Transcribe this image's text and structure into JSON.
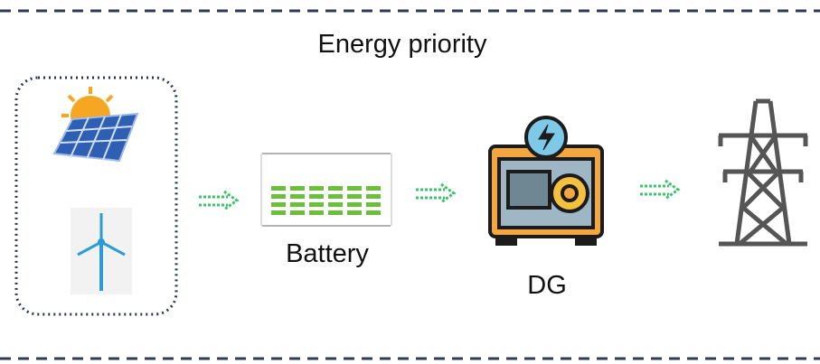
{
  "title": "Energy priority",
  "nodes": [
    {
      "label": "Battery"
    },
    {
      "label": "DG"
    }
  ]
}
